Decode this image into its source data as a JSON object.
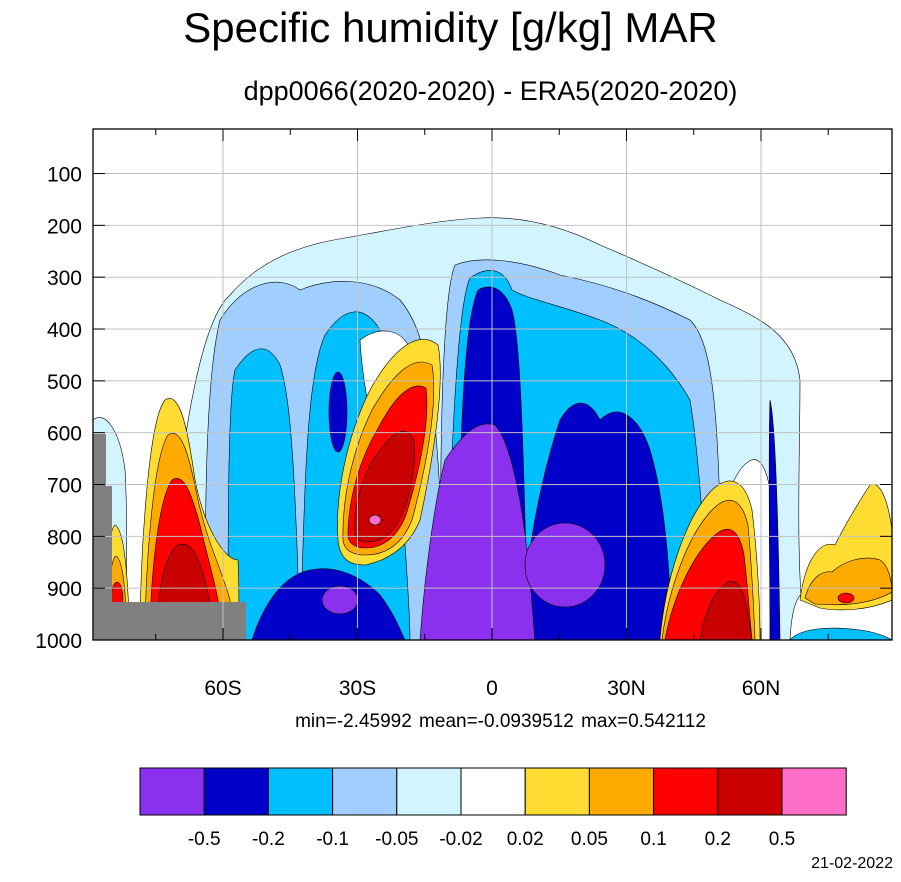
{
  "chart_data": {
    "type": "contour",
    "title": "Specific humidity [g/kg] MAR",
    "subtitle": "dpp0066(2020-2020) - ERA5(2020-2020)",
    "y_axis": {
      "reversed": true,
      "ylim": [
        1000,
        10
      ],
      "ticks": [
        100,
        200,
        300,
        400,
        500,
        600,
        700,
        800,
        900,
        1000
      ]
    },
    "x_axis": {
      "xlim": [
        -90,
        90
      ],
      "ticks": [
        -60,
        -30,
        0,
        30,
        60
      ],
      "tick_labels": [
        "60S",
        "30S",
        "0",
        "30N",
        "60N"
      ]
    },
    "grid": true,
    "stats_text": "min=-2.45992   mean=-0.0939512   max=0.542112",
    "colorbar": {
      "levels": [
        "-0.5",
        "-0.2",
        "-0.1",
        "-0.05",
        "-0.02",
        "0.02",
        "0.05",
        "0.1",
        "0.2",
        "0.5"
      ],
      "colors": [
        "#8c30f0",
        "#0000c8",
        "#00bfff",
        "#a0cfff",
        "#d2f4ff",
        "#ffffff",
        "#ffdc32",
        "#ffaa00",
        "#ff0000",
        "#c80000",
        "#ff6ec8"
      ]
    },
    "terrain_color": "#808080"
  },
  "footer": {
    "date": "21-02-2022"
  }
}
